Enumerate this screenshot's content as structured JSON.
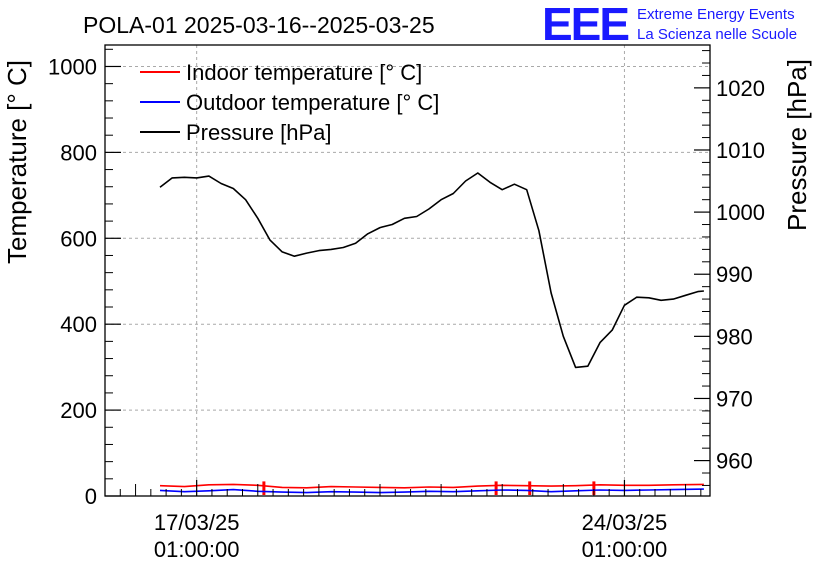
{
  "logo": {
    "mark": "EEE",
    "line1": "Extreme Energy Events",
    "line2": "La Scienza nelle Scuole",
    "color": "#1a1aff"
  },
  "chart_data": {
    "type": "line",
    "title": "POLA-01 2025-03-16--2025-03-25",
    "ylabel_left": "Temperature [° C]",
    "ylabel_right": "Pressure [hPa]",
    "xlabel": "",
    "x_unit": "days since 2025-03-15 01:00:00",
    "xlim": [
      0.5,
      10.4
    ],
    "ylim_left": [
      0,
      1050
    ],
    "ylim_right": [
      954.3,
      1026.9
    ],
    "grid": true,
    "legend_position": "top-left",
    "x_ticks": [
      {
        "value": 2,
        "label_date": "17/03/25",
        "label_time": "01:00:00"
      },
      {
        "value": 9,
        "label_date": "24/03/25",
        "label_time": "01:00:00"
      }
    ],
    "y_ticks_left": [
      {
        "value": 0,
        "label": "0"
      },
      {
        "value": 200,
        "label": "200"
      },
      {
        "value": 400,
        "label": "400"
      },
      {
        "value": 600,
        "label": "600"
      },
      {
        "value": 800,
        "label": "800"
      },
      {
        "value": 1000,
        "label": "1000"
      }
    ],
    "y_ticks_right": [
      {
        "value": 960,
        "label": "960"
      },
      {
        "value": 970,
        "label": "970"
      },
      {
        "value": 980,
        "label": "980"
      },
      {
        "value": 990,
        "label": "990"
      },
      {
        "value": 1000,
        "label": "1000"
      },
      {
        "value": 1010,
        "label": "1010"
      },
      {
        "value": 1020,
        "label": "1020"
      }
    ],
    "series": [
      {
        "name": "Indoor temperature [° C]",
        "axis": "left",
        "color": "#ff0000",
        "x": [
          1.4,
          1.8,
          2.2,
          2.6,
          3.0,
          3.4,
          3.8,
          4.2,
          4.6,
          5.0,
          5.4,
          5.8,
          6.2,
          6.6,
          7.0,
          7.4,
          7.8,
          8.2,
          8.6,
          9.0,
          9.4,
          9.8,
          10.3
        ],
        "y": [
          24,
          22,
          26,
          27,
          25,
          20,
          19,
          22,
          21,
          20,
          19,
          21,
          20,
          23,
          25,
          24,
          23,
          24,
          26,
          25,
          25,
          26,
          27
        ],
        "spikes_x": [
          3.1,
          6.9,
          7.45,
          8.5
        ]
      },
      {
        "name": "Outdoor temperature [° C]",
        "axis": "left",
        "color": "#0000ff",
        "x": [
          1.4,
          1.8,
          2.2,
          2.6,
          3.0,
          3.4,
          3.8,
          4.2,
          4.6,
          5.0,
          5.4,
          5.8,
          6.2,
          6.6,
          7.0,
          7.4,
          7.8,
          8.2,
          8.6,
          9.0,
          9.4,
          9.8,
          10.3
        ],
        "y": [
          13,
          10,
          12,
          15,
          11,
          9,
          8,
          10,
          9,
          8,
          9,
          11,
          10,
          12,
          14,
          13,
          10,
          12,
          14,
          13,
          14,
          15,
          16
        ]
      },
      {
        "name": "Pressure [hPa]",
        "axis": "right",
        "color": "#000000",
        "x": [
          1.4,
          1.6,
          1.8,
          2.0,
          2.2,
          2.4,
          2.6,
          2.8,
          3.0,
          3.2,
          3.4,
          3.6,
          3.8,
          4.0,
          4.2,
          4.4,
          4.6,
          4.8,
          5.0,
          5.2,
          5.4,
          5.6,
          5.8,
          6.0,
          6.2,
          6.4,
          6.6,
          6.8,
          7.0,
          7.2,
          7.4,
          7.6,
          7.8,
          8.0,
          8.2,
          8.4,
          8.6,
          8.8,
          9.0,
          9.2,
          9.4,
          9.6,
          9.8,
          10.0,
          10.2,
          10.3
        ],
        "y": [
          1004.0,
          1005.5,
          1005.6,
          1005.5,
          1005.8,
          1004.6,
          1003.8,
          1002.0,
          999.0,
          995.5,
          993.6,
          992.9,
          993.4,
          993.8,
          994.0,
          994.3,
          995.0,
          996.5,
          997.5,
          998.0,
          999.0,
          999.3,
          1000.5,
          1002.0,
          1003.0,
          1005.0,
          1006.3,
          1004.8,
          1003.6,
          1004.5,
          1003.6,
          997.0,
          987.0,
          980.0,
          975.0,
          975.2,
          979.0,
          981.0,
          985.0,
          986.3,
          986.2,
          985.8,
          986.0,
          986.6,
          987.2,
          987.3
        ]
      }
    ]
  }
}
